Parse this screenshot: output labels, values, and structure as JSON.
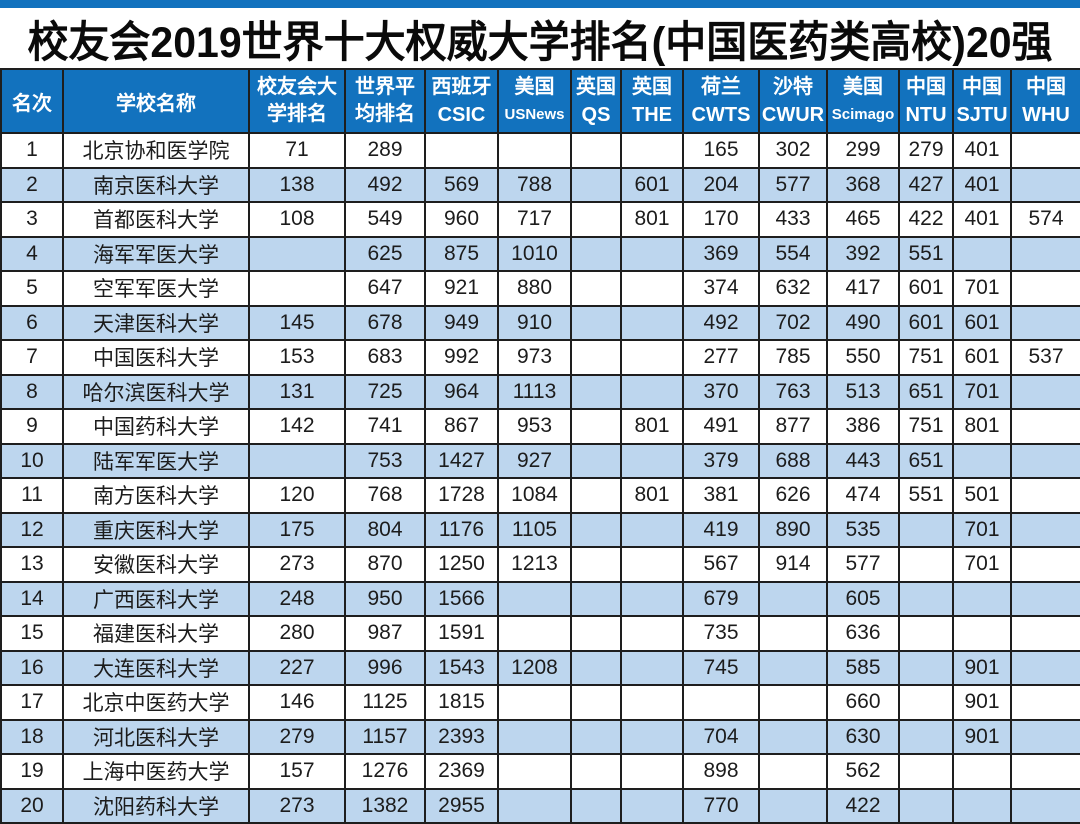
{
  "colors": {
    "header_blue": "#1272BE",
    "row_alt_blue": "#BDD6EE",
    "border_dark": "#1E1E1E",
    "title_black": "#0A0A0A",
    "header_text": "#FFFFFF",
    "cell_text": "#1C1C1C"
  },
  "header": {
    "rank": "名次",
    "school": "学校名称",
    "xyh": [
      "校友会大",
      "学排名"
    ],
    "world": [
      "世界平",
      "均排名"
    ],
    "sources": [
      {
        "country": "西班牙",
        "org": "CSIC"
      },
      {
        "country": "美国",
        "org": "USNews"
      },
      {
        "country": "英国",
        "org": "QS"
      },
      {
        "country": "英国",
        "org": "THE"
      },
      {
        "country": "荷兰",
        "org": "CWTS"
      },
      {
        "country": "沙特",
        "org": "CWUR"
      },
      {
        "country": "美国",
        "org": "Scimago"
      },
      {
        "country": "中国",
        "org": "NTU"
      },
      {
        "country": "中国",
        "org": "SJTU"
      },
      {
        "country": "中国",
        "org": "WHU"
      }
    ]
  },
  "chart_data": {
    "type": "table",
    "title": "校友会2019世界十大权威大学排名(中国医药类高校)20强",
    "columns": [
      "名次",
      "学校名称",
      "校友会大学排名",
      "世界平均排名",
      "西班牙CSIC",
      "美国USNews",
      "英国QS",
      "英国THE",
      "荷兰CWTS",
      "沙特CWUR",
      "美国Scimago",
      "中国NTU",
      "中国SJTU",
      "中国WHU"
    ],
    "rows": [
      [
        "1",
        "北京协和医学院",
        "71",
        "289",
        "",
        "",
        "",
        "",
        "165",
        "302",
        "299",
        "279",
        "401",
        ""
      ],
      [
        "2",
        "南京医科大学",
        "138",
        "492",
        "569",
        "788",
        "",
        "601",
        "204",
        "577",
        "368",
        "427",
        "401",
        ""
      ],
      [
        "3",
        "首都医科大学",
        "108",
        "549",
        "960",
        "717",
        "",
        "801",
        "170",
        "433",
        "465",
        "422",
        "401",
        "574"
      ],
      [
        "4",
        "海军军医大学",
        "",
        "625",
        "875",
        "1010",
        "",
        "",
        "369",
        "554",
        "392",
        "551",
        "",
        ""
      ],
      [
        "5",
        "空军军医大学",
        "",
        "647",
        "921",
        "880",
        "",
        "",
        "374",
        "632",
        "417",
        "601",
        "701",
        ""
      ],
      [
        "6",
        "天津医科大学",
        "145",
        "678",
        "949",
        "910",
        "",
        "",
        "492",
        "702",
        "490",
        "601",
        "601",
        ""
      ],
      [
        "7",
        "中国医科大学",
        "153",
        "683",
        "992",
        "973",
        "",
        "",
        "277",
        "785",
        "550",
        "751",
        "601",
        "537"
      ],
      [
        "8",
        "哈尔滨医科大学",
        "131",
        "725",
        "964",
        "1113",
        "",
        "",
        "370",
        "763",
        "513",
        "651",
        "701",
        ""
      ],
      [
        "9",
        "中国药科大学",
        "142",
        "741",
        "867",
        "953",
        "",
        "801",
        "491",
        "877",
        "386",
        "751",
        "801",
        ""
      ],
      [
        "10",
        "陆军军医大学",
        "",
        "753",
        "1427",
        "927",
        "",
        "",
        "379",
        "688",
        "443",
        "651",
        "",
        ""
      ],
      [
        "11",
        "南方医科大学",
        "120",
        "768",
        "1728",
        "1084",
        "",
        "801",
        "381",
        "626",
        "474",
        "551",
        "501",
        ""
      ],
      [
        "12",
        "重庆医科大学",
        "175",
        "804",
        "1176",
        "1105",
        "",
        "",
        "419",
        "890",
        "535",
        "",
        "701",
        ""
      ],
      [
        "13",
        "安徽医科大学",
        "273",
        "870",
        "1250",
        "1213",
        "",
        "",
        "567",
        "914",
        "577",
        "",
        "701",
        ""
      ],
      [
        "14",
        "广西医科大学",
        "248",
        "950",
        "1566",
        "",
        "",
        "",
        "679",
        "",
        "605",
        "",
        "",
        ""
      ],
      [
        "15",
        "福建医科大学",
        "280",
        "987",
        "1591",
        "",
        "",
        "",
        "735",
        "",
        "636",
        "",
        "",
        ""
      ],
      [
        "16",
        "大连医科大学",
        "227",
        "996",
        "1543",
        "1208",
        "",
        "",
        "745",
        "",
        "585",
        "",
        "901",
        ""
      ],
      [
        "17",
        "北京中医药大学",
        "146",
        "1125",
        "1815",
        "",
        "",
        "",
        "",
        "",
        "660",
        "",
        "901",
        ""
      ],
      [
        "18",
        "河北医科大学",
        "279",
        "1157",
        "2393",
        "",
        "",
        "",
        "704",
        "",
        "630",
        "",
        "901",
        ""
      ],
      [
        "19",
        "上海中医药大学",
        "157",
        "1276",
        "2369",
        "",
        "",
        "",
        "898",
        "",
        "562",
        "",
        "",
        ""
      ],
      [
        "20",
        "沈阳药科大学",
        "273",
        "1382",
        "2955",
        "",
        "",
        "",
        "770",
        "",
        "422",
        "",
        "",
        ""
      ]
    ]
  }
}
